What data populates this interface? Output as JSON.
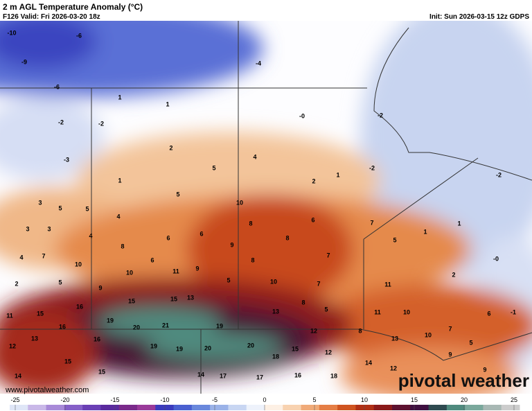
{
  "header": {
    "title": "2 m AGL Temperature Anomaly (°C)",
    "valid": "F126 Valid: Fri 2026-03-20 18z",
    "init": "Init: Sun 2026-03-15 12z GDPS"
  },
  "map": {
    "labels": [
      "-10",
      "-6",
      "-9",
      "-4",
      "-6",
      "1",
      "1",
      "-0",
      "-2",
      "-2",
      "-2",
      "2",
      "4",
      "-3",
      "5",
      "-2",
      "1",
      "2",
      "-2",
      "1",
      "5",
      "3",
      "5",
      "5",
      "10",
      "4",
      "6",
      "7",
      "8",
      "1",
      "3",
      "3",
      "4",
      "6",
      "6",
      "8",
      "5",
      "1",
      "8",
      "9",
      "4",
      "7",
      "7",
      "6",
      "8",
      "-0",
      "10",
      "10",
      "11",
      "9",
      "2",
      "5",
      "5",
      "10",
      "7",
      "2",
      "11",
      "9",
      "15",
      "15",
      "13",
      "8",
      "16",
      "5",
      "13",
      "11",
      "10",
      "6",
      "-1",
      "11",
      "15",
      "19",
      "16",
      "20",
      "21",
      "19",
      "12",
      "8",
      "7",
      "13",
      "16",
      "13",
      "10",
      "12",
      "19",
      "19",
      "20",
      "20",
      "15",
      "5",
      "12",
      "18",
      "9",
      "15",
      "14",
      "12",
      "9",
      "15",
      "14",
      "14",
      "17",
      "17",
      "16",
      "18"
    ]
  },
  "watermark": {
    "url": "www.pivotalweather.com",
    "logo": "pivotal weather"
  },
  "colorbar": {
    "ticks": [
      -25,
      -20,
      -15,
      -10,
      -5,
      0,
      5,
      10,
      15,
      20,
      25
    ]
  }
}
